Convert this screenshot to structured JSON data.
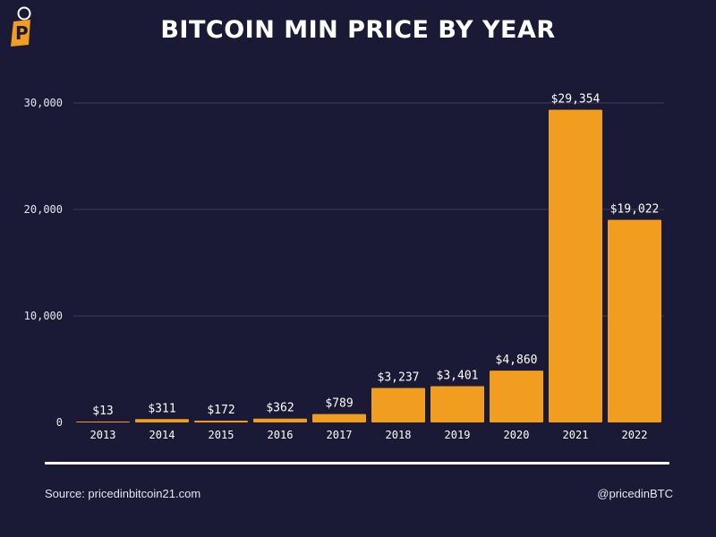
{
  "header": {
    "title": "BITCOIN MIN PRICE BY YEAR"
  },
  "footer": {
    "source": "Source: pricedinbitcoin21.com",
    "handle": "@pricedinBTC"
  },
  "colors": {
    "background": "#1a1936",
    "bar": "#f19d1f",
    "grid": "#3e3d5c"
  },
  "chart_data": {
    "type": "bar",
    "title": "BITCOIN MIN PRICE BY YEAR",
    "xlabel": "",
    "ylabel": "",
    "ylim": [
      0,
      30000
    ],
    "yticks": [
      0,
      10000,
      20000,
      30000
    ],
    "ytick_labels": [
      "0",
      "10,000",
      "20,000",
      "30,000"
    ],
    "grid": true,
    "categories": [
      "2013",
      "2014",
      "2015",
      "2016",
      "2017",
      "2018",
      "2019",
      "2020",
      "2021",
      "2022"
    ],
    "values": [
      13,
      311,
      172,
      362,
      789,
      3237,
      3401,
      4860,
      29354,
      19022
    ],
    "data_labels": [
      "$13",
      "$311",
      "$172",
      "$362",
      "$789",
      "$3,237",
      "$3,401",
      "$4,860",
      "$29,354",
      "$19,022"
    ]
  }
}
